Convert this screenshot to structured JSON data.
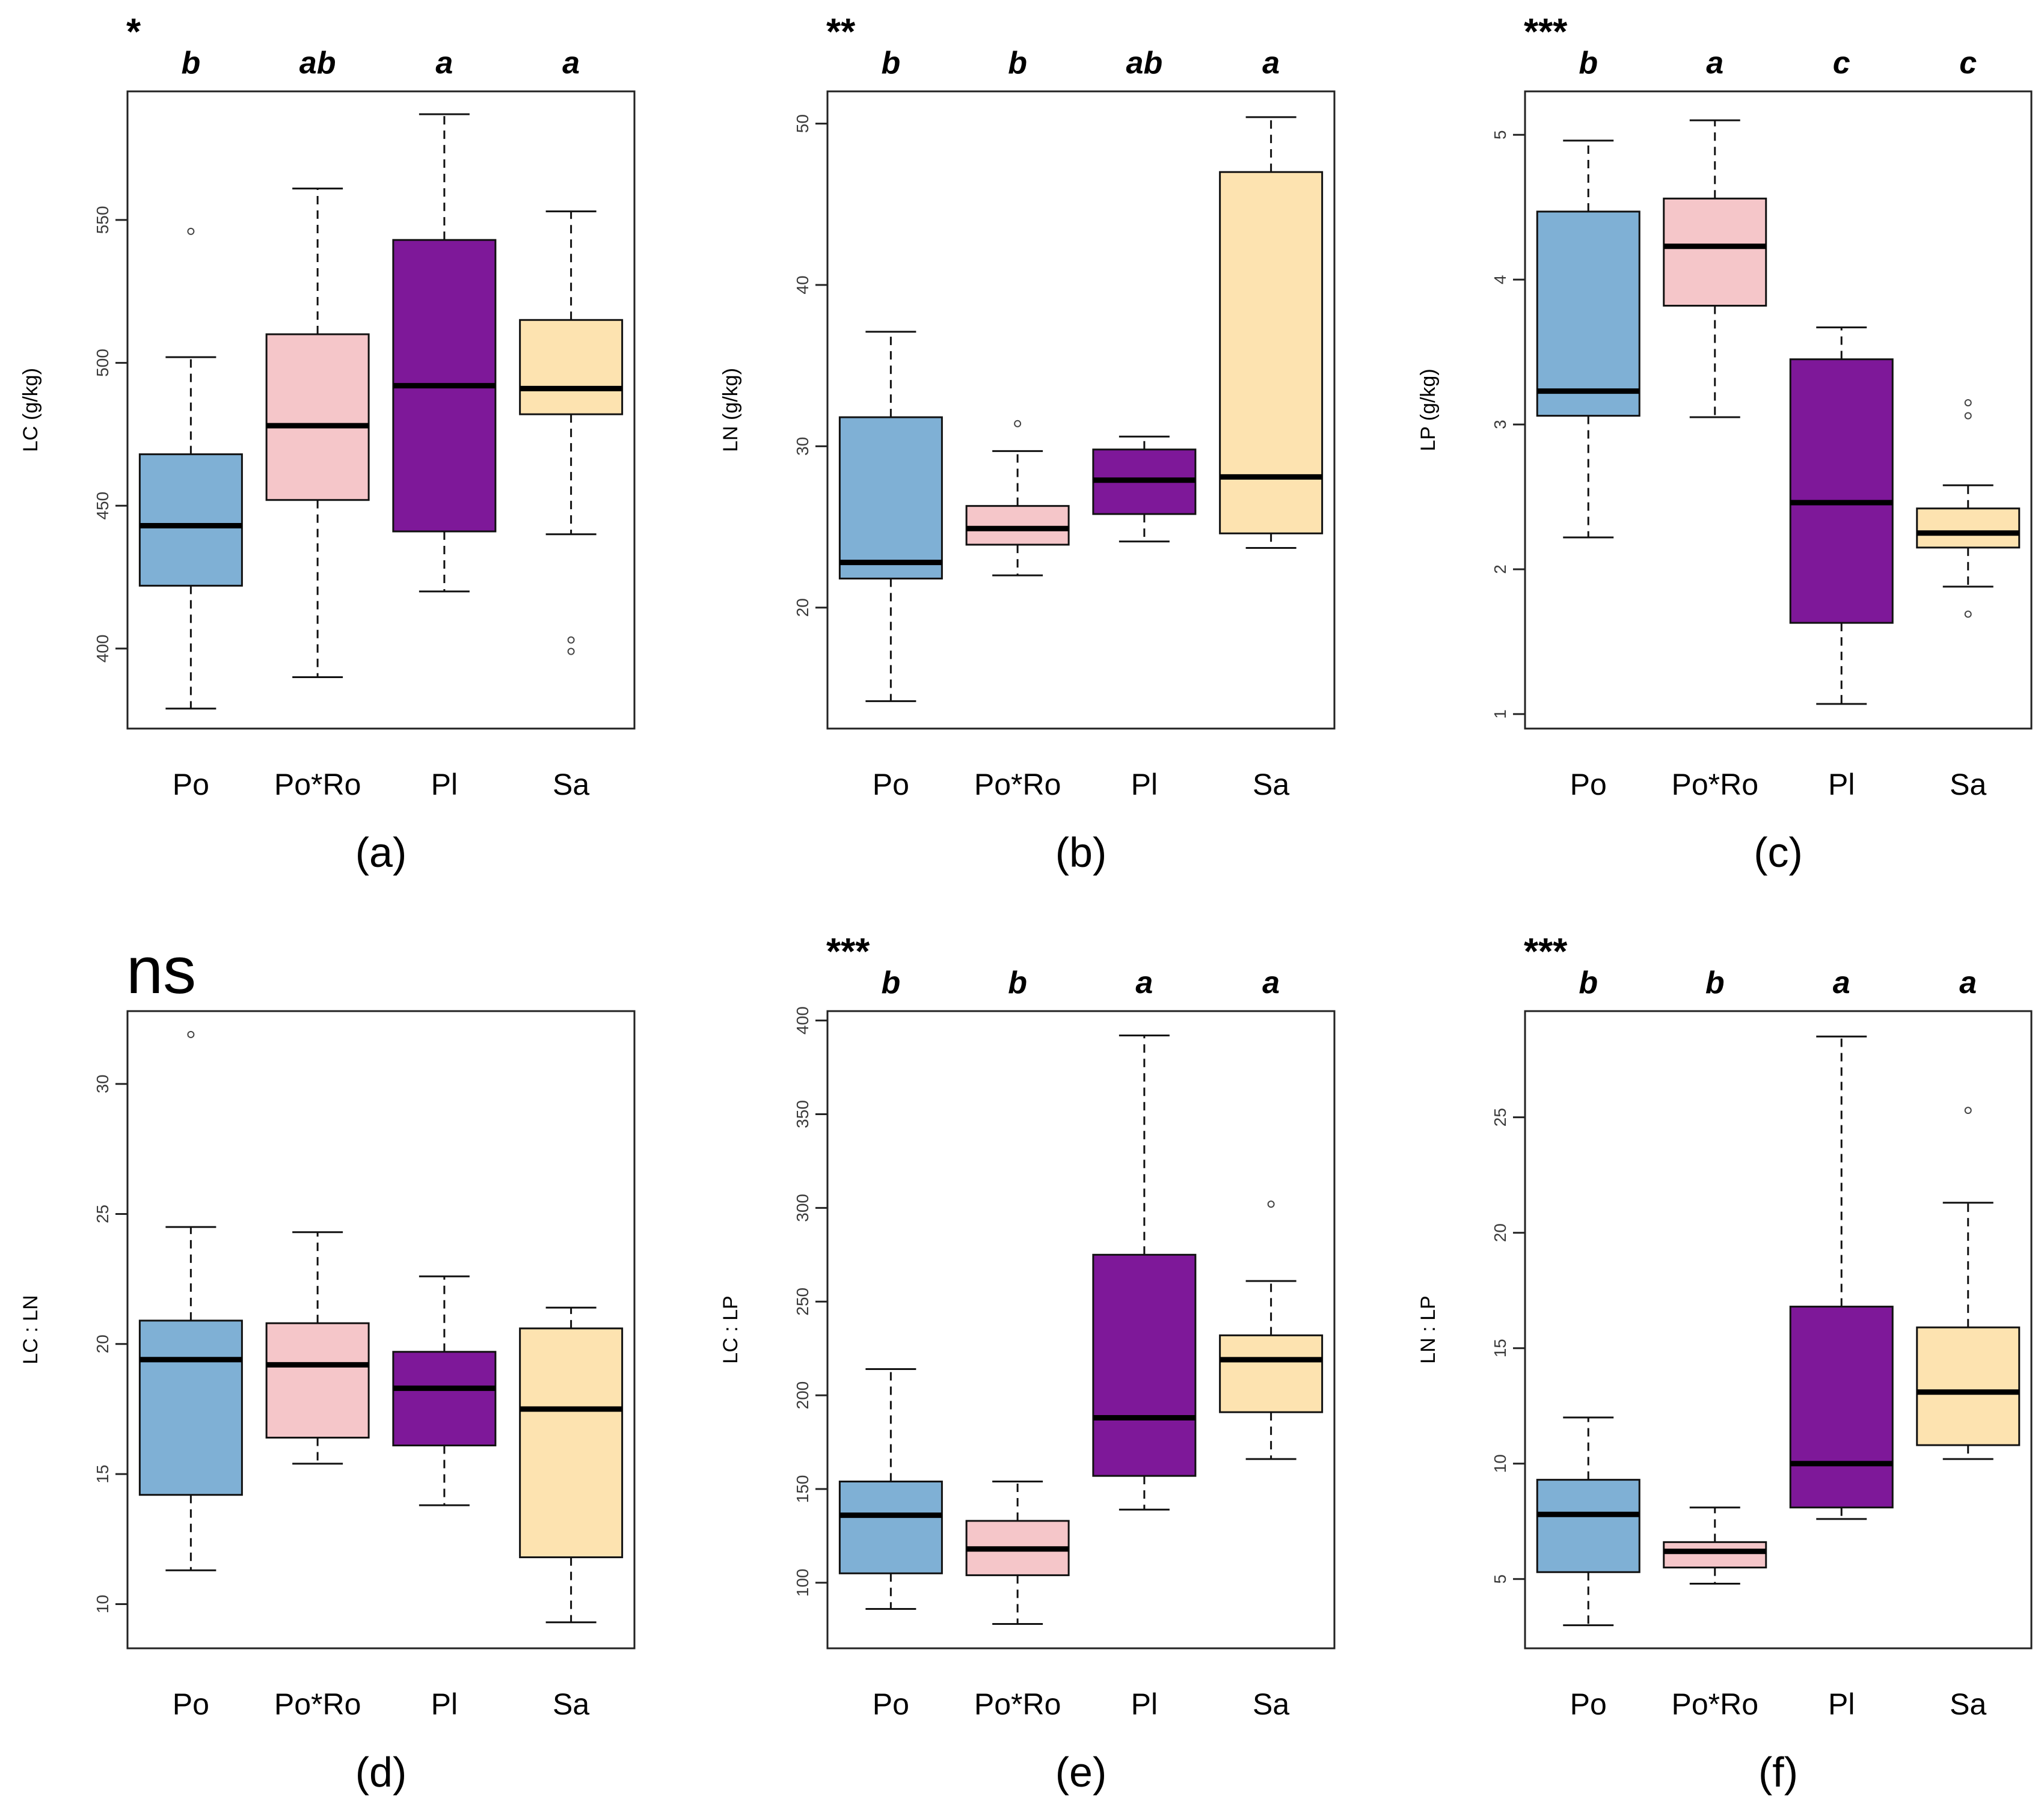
{
  "colors": {
    "Po": "#7fb0d5",
    "Po*Ro": "#f5c6c9",
    "Pl": "#7e1899",
    "Sa": "#fde3b0"
  },
  "chart_data": [
    {
      "type": "boxplot",
      "panel_label": "(a)",
      "significance": "*",
      "ylabel": "LC (g/kg)",
      "ylim": [
        372,
        595
      ],
      "yticks": [
        400,
        450,
        500,
        550
      ],
      "categories": [
        "Po",
        "Po*Ro",
        "Pl",
        "Sa"
      ],
      "letters": [
        "b",
        "ab",
        "a",
        "a"
      ],
      "boxes": [
        {
          "whisker_low": 379,
          "q1": 422,
          "median": 443,
          "q3": 468,
          "whisker_high": 502,
          "outliers": [
            546
          ]
        },
        {
          "whisker_low": 390,
          "q1": 452,
          "median": 478,
          "q3": 510,
          "whisker_high": 561,
          "outliers": []
        },
        {
          "whisker_low": 420,
          "q1": 441,
          "median": 492,
          "q3": 543,
          "whisker_high": 587,
          "outliers": []
        },
        {
          "whisker_low": 440,
          "q1": 482,
          "median": 491,
          "q3": 515,
          "whisker_high": 553,
          "outliers": [
            403,
            399
          ]
        }
      ]
    },
    {
      "type": "boxplot",
      "panel_label": "(b)",
      "significance": "**",
      "ylabel": "LN (g/kg)",
      "ylim": [
        12.5,
        52.0
      ],
      "yticks": [
        20,
        30,
        40,
        50
      ],
      "categories": [
        "Po",
        "Po*Ro",
        "Pl",
        "Sa"
      ],
      "letters": [
        "b",
        "b",
        "ab",
        "a"
      ],
      "boxes": [
        {
          "whisker_low": 14.2,
          "q1": 21.8,
          "median": 22.8,
          "q3": 31.8,
          "whisker_high": 37.1,
          "outliers": []
        },
        {
          "whisker_low": 22.0,
          "q1": 23.9,
          "median": 24.9,
          "q3": 26.3,
          "whisker_high": 29.7,
          "outliers": [
            31.4
          ]
        },
        {
          "whisker_low": 24.1,
          "q1": 25.8,
          "median": 27.9,
          "q3": 29.8,
          "whisker_high": 30.6,
          "outliers": []
        },
        {
          "whisker_low": 23.7,
          "q1": 24.6,
          "median": 28.1,
          "q3": 47.0,
          "whisker_high": 50.4,
          "outliers": []
        }
      ]
    },
    {
      "type": "boxplot",
      "panel_label": "(c)",
      "significance": "***",
      "ylabel": "LP (g/kg)",
      "ylim": [
        0.9,
        5.3
      ],
      "yticks": [
        1,
        2,
        3,
        4,
        5
      ],
      "categories": [
        "Po",
        "Po*Ro",
        "Pl",
        "Sa"
      ],
      "letters": [
        "b",
        "a",
        "c",
        "c"
      ],
      "boxes": [
        {
          "whisker_low": 2.22,
          "q1": 3.06,
          "median": 3.23,
          "q3": 4.47,
          "whisker_high": 4.96,
          "outliers": []
        },
        {
          "whisker_low": 3.05,
          "q1": 3.82,
          "median": 4.23,
          "q3": 4.56,
          "whisker_high": 5.1,
          "outliers": []
        },
        {
          "whisker_low": 1.07,
          "q1": 1.63,
          "median": 2.46,
          "q3": 3.45,
          "whisker_high": 3.67,
          "outliers": []
        },
        {
          "whisker_low": 1.88,
          "q1": 2.15,
          "median": 2.25,
          "q3": 2.42,
          "whisker_high": 2.58,
          "outliers": [
            3.15,
            3.06,
            1.69
          ]
        }
      ]
    },
    {
      "type": "boxplot",
      "panel_label": "(d)",
      "significance": "ns",
      "ylabel": "LC : LN",
      "ylim": [
        8.3,
        32.8
      ],
      "yticks": [
        10,
        15,
        20,
        25,
        30
      ],
      "categories": [
        "Po",
        "Po*Ro",
        "Pl",
        "Sa"
      ],
      "letters": [
        "",
        "",
        "",
        ""
      ],
      "boxes": [
        {
          "whisker_low": 11.3,
          "q1": 14.2,
          "median": 19.4,
          "q3": 20.9,
          "whisker_high": 24.5,
          "outliers": [
            31.9
          ]
        },
        {
          "whisker_low": 15.4,
          "q1": 16.4,
          "median": 19.2,
          "q3": 20.8,
          "whisker_high": 24.3,
          "outliers": []
        },
        {
          "whisker_low": 13.8,
          "q1": 16.1,
          "median": 18.3,
          "q3": 19.7,
          "whisker_high": 22.6,
          "outliers": []
        },
        {
          "whisker_low": 9.3,
          "q1": 11.8,
          "median": 17.5,
          "q3": 20.6,
          "whisker_high": 21.4,
          "outliers": []
        }
      ]
    },
    {
      "type": "boxplot",
      "panel_label": "(e)",
      "significance": "***",
      "ylabel": "LC : LP",
      "ylim": [
        65,
        405
      ],
      "yticks": [
        100,
        150,
        200,
        250,
        300,
        350,
        400
      ],
      "categories": [
        "Po",
        "Po*Ro",
        "Pl",
        "Sa"
      ],
      "letters": [
        "b",
        "b",
        "a",
        "a"
      ],
      "boxes": [
        {
          "whisker_low": 86,
          "q1": 105,
          "median": 136,
          "q3": 154,
          "whisker_high": 214,
          "outliers": []
        },
        {
          "whisker_low": 78,
          "q1": 104,
          "median": 118,
          "q3": 133,
          "whisker_high": 154,
          "outliers": []
        },
        {
          "whisker_low": 139,
          "q1": 157,
          "median": 188,
          "q3": 275,
          "whisker_high": 392,
          "outliers": []
        },
        {
          "whisker_low": 166,
          "q1": 191,
          "median": 219,
          "q3": 232,
          "whisker_high": 261,
          "outliers": [
            302
          ]
        }
      ]
    },
    {
      "type": "boxplot",
      "panel_label": "(f)",
      "significance": "***",
      "ylabel": "LN : LP",
      "ylim": [
        2.0,
        29.6
      ],
      "yticks": [
        5,
        10,
        15,
        20,
        25
      ],
      "categories": [
        "Po",
        "Po*Ro",
        "Pl",
        "Sa"
      ],
      "letters": [
        "b",
        "b",
        "a",
        "a"
      ],
      "boxes": [
        {
          "whisker_low": 3.0,
          "q1": 5.3,
          "median": 7.8,
          "q3": 9.3,
          "whisker_high": 12.0,
          "outliers": []
        },
        {
          "whisker_low": 4.8,
          "q1": 5.5,
          "median": 6.2,
          "q3": 6.6,
          "whisker_high": 8.1,
          "outliers": []
        },
        {
          "whisker_low": 7.6,
          "q1": 8.1,
          "median": 10.0,
          "q3": 16.8,
          "whisker_high": 28.5,
          "outliers": []
        },
        {
          "whisker_low": 10.2,
          "q1": 10.8,
          "median": 13.1,
          "q3": 15.9,
          "whisker_high": 21.3,
          "outliers": [
            25.3
          ]
        }
      ]
    }
  ]
}
